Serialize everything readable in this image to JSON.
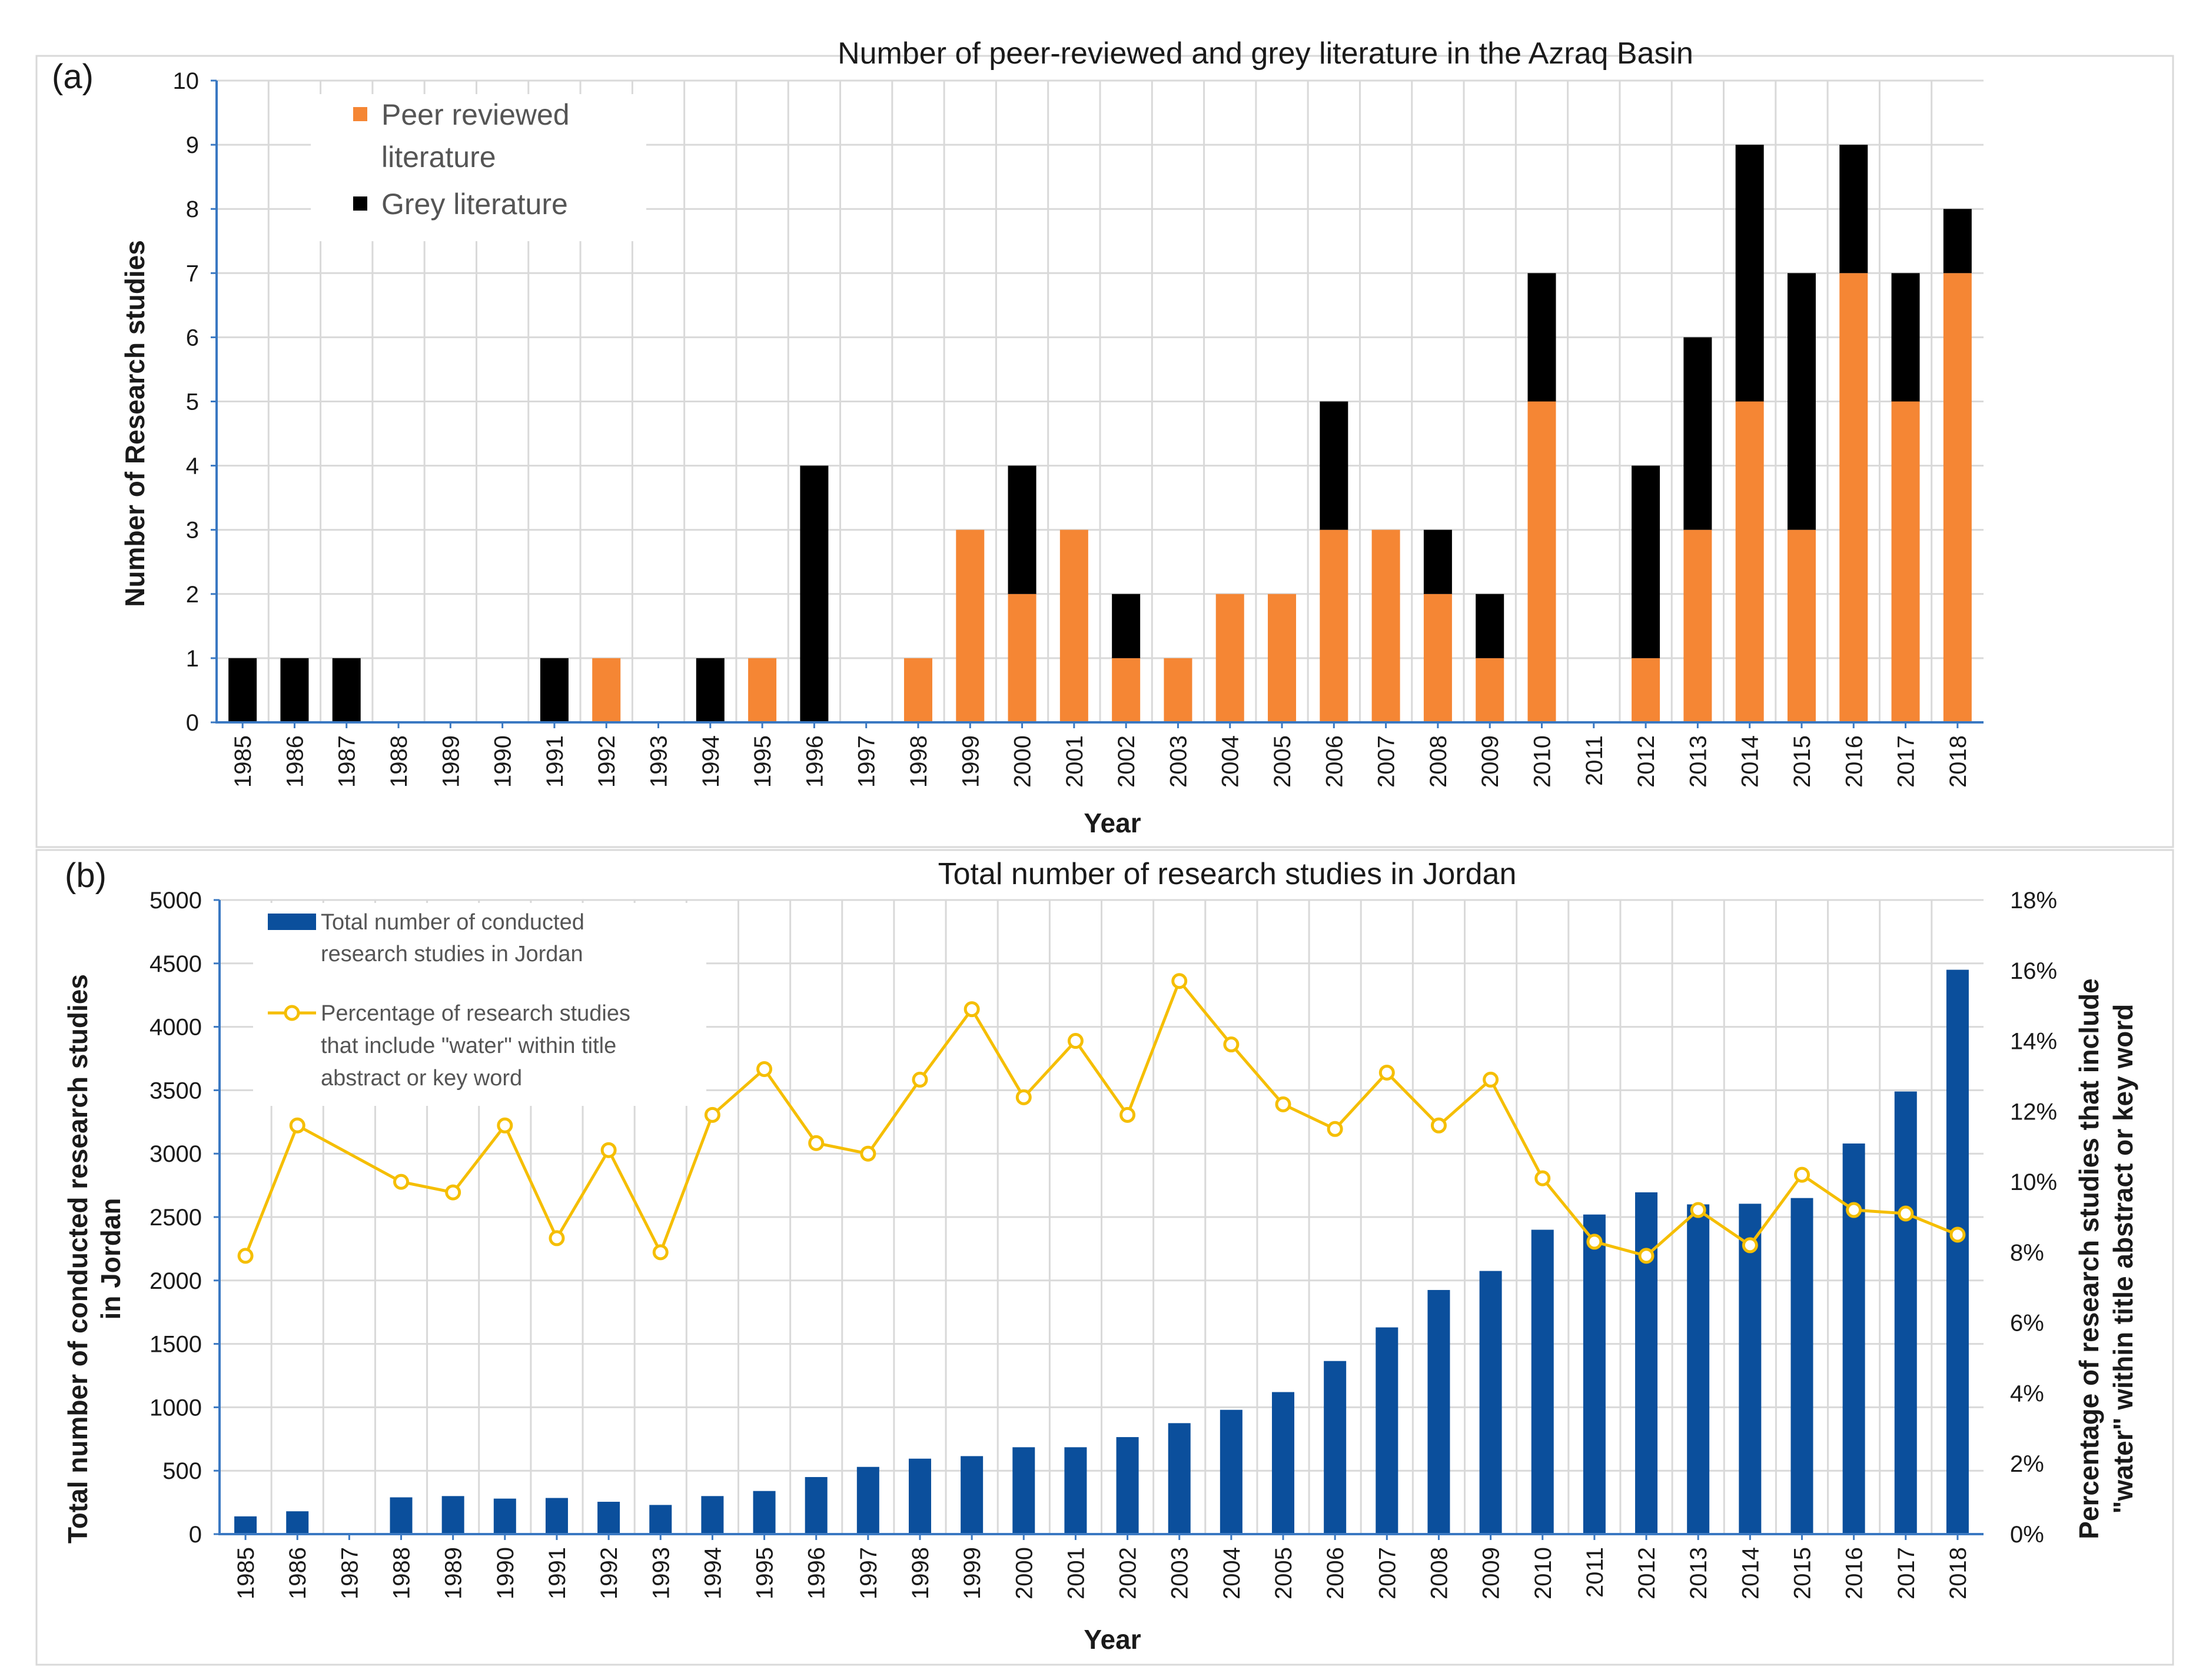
{
  "chart_data": [
    {
      "panel": "(a)",
      "type": "bar",
      "stacked": true,
      "title": "Number of peer-reviewed and grey literature in the Azraq Basin",
      "xlabel": "Year",
      "ylabel": "Number of Research studies",
      "ylim": [
        0,
        10
      ],
      "yticks": [
        "0",
        "1",
        "2",
        "3",
        "4",
        "5",
        "6",
        "7",
        "8",
        "9",
        "10"
      ],
      "grid": true,
      "legend_position": "top-left",
      "categories": [
        "1985",
        "1986",
        "1987",
        "1988",
        "1989",
        "1990",
        "1991",
        "1992",
        "1993",
        "1994",
        "1995",
        "1996",
        "1997",
        "1998",
        "1999",
        "2000",
        "2001",
        "2002",
        "2003",
        "2004",
        "2005",
        "2006",
        "2007",
        "2008",
        "2009",
        "2010",
        "2011",
        "2012",
        "2013",
        "2014",
        "2015",
        "2016",
        "2017",
        "2018"
      ],
      "series": [
        {
          "name": "Peer reviewed literature",
          "legend_lines": [
            "Peer reviewed",
            "literature"
          ],
          "color": "#f58634",
          "values": [
            0,
            0,
            0,
            0,
            0,
            0,
            0,
            1,
            0,
            0,
            1,
            0,
            0,
            1,
            3,
            2,
            3,
            1,
            1,
            2,
            2,
            3,
            3,
            2,
            1,
            5,
            0,
            1,
            3,
            5,
            3,
            7,
            5,
            7
          ]
        },
        {
          "name": "Grey literature",
          "legend_lines": [
            "Grey literature"
          ],
          "color": "#000000",
          "values": [
            1,
            1,
            1,
            0,
            0,
            0,
            1,
            0,
            0,
            1,
            0,
            4,
            0,
            0,
            0,
            2,
            0,
            1,
            0,
            0,
            0,
            2,
            0,
            1,
            1,
            2,
            0,
            3,
            3,
            4,
            4,
            2,
            2,
            1
          ]
        }
      ]
    },
    {
      "panel": "(b)",
      "type": "bar",
      "title": "Total number of research studies in Jordan",
      "xlabel": "Year",
      "ylabel": "Total number of conducted research studies in Jordan",
      "ylabel_lines": [
        "Total number of conducted research studies",
        "in Jordan"
      ],
      "ylim": [
        0,
        5000
      ],
      "yticks": [
        "0",
        "500",
        "1000",
        "1500",
        "2000",
        "2500",
        "3000",
        "3500",
        "4000",
        "4500",
        "5000"
      ],
      "y2label": "Percentage of research studies that include \"water\" within title abstract or key word",
      "y2label_lines": [
        "Percentage of research studies that include",
        "\"water\" within  title abstract or key word"
      ],
      "y2lim": [
        0,
        18
      ],
      "y2ticks": [
        "0%",
        "2%",
        "4%",
        "6%",
        "8%",
        "10%",
        "12%",
        "14%",
        "16%",
        "18%"
      ],
      "grid": true,
      "legend_position": "top-left",
      "categories": [
        "1985",
        "1986",
        "1987",
        "1988",
        "1989",
        "1990",
        "1991",
        "1992",
        "1993",
        "1994",
        "1995",
        "1996",
        "1997",
        "1998",
        "1999",
        "2000",
        "2001",
        "2002",
        "2003",
        "2004",
        "2005",
        "2006",
        "2007",
        "2008",
        "2009",
        "2010",
        "2011",
        "2012",
        "2013",
        "2014",
        "2015",
        "2016",
        "2017",
        "2018"
      ],
      "series": [
        {
          "name": "Total number of conducted research studies in Jordan",
          "legend_lines": [
            "Total number of conducted",
            "research studies in Jordan"
          ],
          "type": "bar",
          "axis": "left",
          "color": "#0b4f9c",
          "values": [
            140,
            180,
            null,
            290,
            300,
            280,
            285,
            255,
            230,
            300,
            340,
            450,
            530,
            595,
            615,
            685,
            685,
            765,
            875,
            980,
            1120,
            1365,
            1630,
            1925,
            2075,
            2400,
            2520,
            2695,
            2600,
            2605,
            2650,
            3080,
            3490,
            4450
          ]
        },
        {
          "name": "Percentage of research studies that include \"water\" within title abstract or key word",
          "legend_lines": [
            "Percentage of research studies",
            "that include \"water\" within  title",
            "abstract or key word"
          ],
          "type": "line",
          "axis": "right",
          "color": "#f5be00",
          "marker": "circle",
          "values": [
            7.9,
            11.6,
            null,
            10.0,
            9.7,
            11.6,
            8.4,
            10.9,
            8.0,
            11.9,
            13.2,
            11.1,
            10.8,
            12.9,
            14.9,
            12.4,
            14.0,
            11.9,
            15.7,
            13.9,
            12.2,
            11.5,
            13.1,
            11.6,
            12.9,
            10.1,
            8.3,
            7.9,
            9.2,
            8.2,
            10.2,
            9.2,
            9.1,
            8.5
          ]
        }
      ]
    }
  ]
}
